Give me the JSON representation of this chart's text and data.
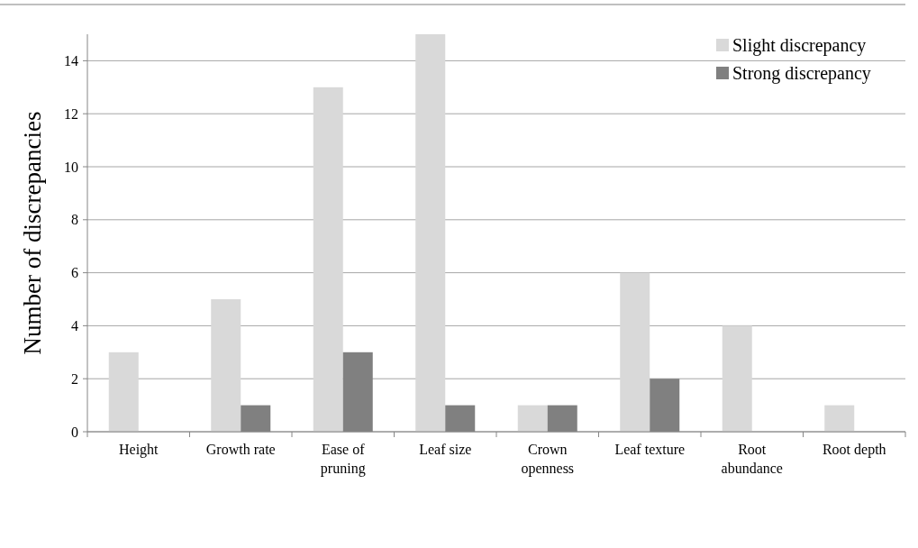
{
  "chart_data": {
    "type": "bar",
    "ylabel": "Number of discrepancies",
    "categories": [
      "Height",
      "Growth rate",
      "Ease of pruning",
      "Leaf size",
      "Crown openness",
      "Leaf texture",
      "Root abundance",
      "Root depth"
    ],
    "series": [
      {
        "name": "Slight discrepancy",
        "color": "#d9d9d9",
        "values": [
          3,
          5,
          13,
          15,
          1,
          6,
          4,
          1
        ]
      },
      {
        "name": "Strong discrepancy",
        "color": "#808080",
        "values": [
          0,
          1,
          3,
          1,
          1,
          2,
          0,
          0
        ]
      }
    ],
    "ylim": [
      0,
      15
    ],
    "yticks": [
      0,
      2,
      4,
      6,
      8,
      10,
      12,
      14
    ],
    "grid": "y",
    "legend": "top right"
  }
}
